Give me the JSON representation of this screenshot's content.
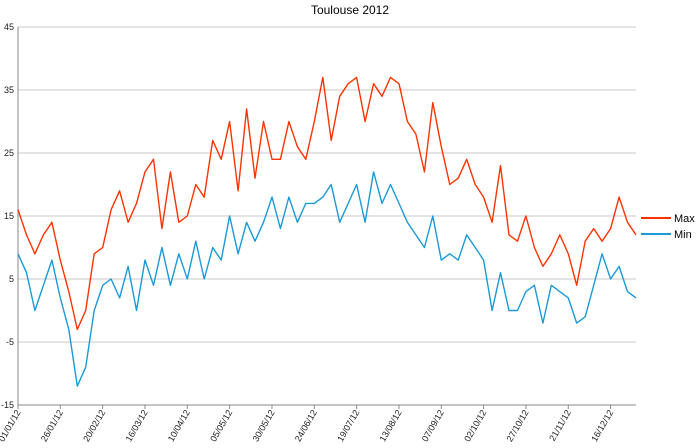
{
  "chart_data": {
    "type": "line",
    "title": "Toulouse 2012",
    "xlabel": "",
    "ylabel": "",
    "ylim": [
      -15,
      45
    ],
    "yticks": [
      -15,
      -5,
      5,
      15,
      25,
      35,
      45
    ],
    "grid": true,
    "legend_position": "right",
    "x_ticks": [
      "01/01/12",
      "26/01/12",
      "20/02/12",
      "16/03/12",
      "10/04/12",
      "05/05/12",
      "30/05/12",
      "24/06/12",
      "19/07/12",
      "13/08/12",
      "07/09/12",
      "02/10/12",
      "27/10/12",
      "21/11/12",
      "16/12/12"
    ],
    "x_tick_days": [
      1,
      26,
      51,
      76,
      101,
      126,
      151,
      176,
      201,
      226,
      251,
      276,
      301,
      326,
      351
    ],
    "x": [
      1,
      6,
      11,
      16,
      21,
      26,
      31,
      36,
      41,
      46,
      51,
      56,
      61,
      66,
      71,
      76,
      81,
      86,
      91,
      96,
      101,
      106,
      111,
      116,
      121,
      126,
      131,
      136,
      141,
      146,
      151,
      156,
      161,
      166,
      171,
      176,
      181,
      186,
      191,
      196,
      201,
      206,
      211,
      216,
      221,
      226,
      231,
      236,
      241,
      246,
      251,
      256,
      261,
      266,
      271,
      276,
      281,
      286,
      291,
      296,
      301,
      306,
      311,
      316,
      321,
      326,
      331,
      336,
      341,
      346,
      351,
      356,
      361,
      366
    ],
    "series": [
      {
        "name": "Max",
        "color": "#ff3300",
        "values": [
          16,
          12,
          9,
          12,
          14,
          8,
          3,
          -3,
          0,
          9,
          10,
          16,
          19,
          14,
          17,
          22,
          24,
          13,
          22,
          14,
          15,
          20,
          18,
          27,
          24,
          30,
          19,
          32,
          21,
          30,
          24,
          24,
          30,
          26,
          24,
          30,
          37,
          27,
          34,
          36,
          37,
          30,
          36,
          34,
          37,
          36,
          30,
          28,
          22,
          33,
          26,
          20,
          21,
          24,
          20,
          18,
          14,
          23,
          12,
          11,
          15,
          10,
          7,
          9,
          12,
          9,
          4,
          11,
          13,
          11,
          13,
          18,
          14,
          12
        ]
      },
      {
        "name": "Min",
        "color": "#1a9ad8",
        "values": [
          9,
          6,
          0,
          4,
          8,
          2,
          -3,
          -12,
          -9,
          0,
          4,
          5,
          2,
          7,
          0,
          8,
          4,
          10,
          4,
          9,
          5,
          11,
          5,
          10,
          8,
          15,
          9,
          14,
          11,
          14,
          18,
          13,
          18,
          14,
          17,
          17,
          18,
          20,
          14,
          17,
          20,
          14,
          22,
          17,
          20,
          17,
          14,
          12,
          10,
          15,
          8,
          9,
          8,
          12,
          10,
          8,
          0,
          6,
          0,
          0,
          3,
          4,
          -2,
          4,
          3,
          2,
          -2,
          -1,
          4,
          9,
          5,
          7,
          3,
          2
        ]
      }
    ]
  }
}
